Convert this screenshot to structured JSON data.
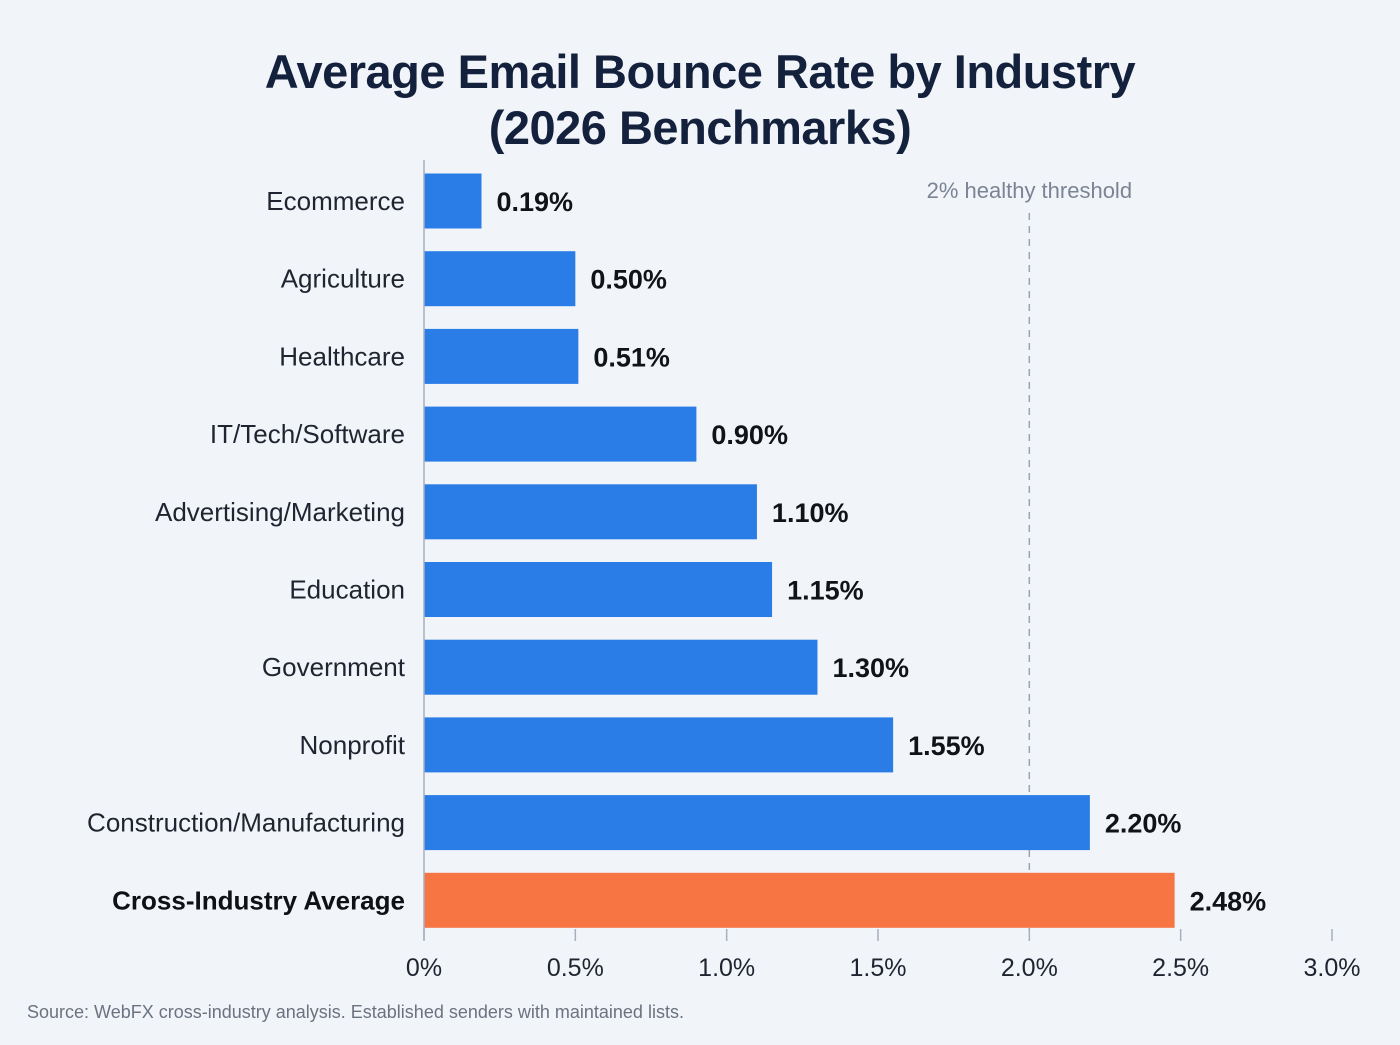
{
  "chart_data": {
    "type": "bar",
    "orientation": "horizontal",
    "title_line1": "Average Email Bounce Rate by Industry",
    "title_line2": "(2026 Benchmarks)",
    "categories": [
      "Ecommerce",
      "Agriculture",
      "Healthcare",
      "IT/Tech/Software",
      "Advertising/Marketing",
      "Education",
      "Government",
      "Nonprofit",
      "Construction/Manufacturing",
      "Cross-Industry Average"
    ],
    "values": [
      0.19,
      0.5,
      0.51,
      0.9,
      1.1,
      1.15,
      1.3,
      1.55,
      2.2,
      2.48
    ],
    "value_labels": [
      "0.19%",
      "0.50%",
      "0.51%",
      "0.90%",
      "1.10%",
      "1.15%",
      "1.30%",
      "1.55%",
      "2.20%",
      "2.48%"
    ],
    "highlight_index": 9,
    "xlim": [
      0,
      3.0
    ],
    "xticks": [
      0,
      0.5,
      1.0,
      1.5,
      2.0,
      2.5,
      3.0
    ],
    "xtick_labels": [
      "0%",
      "0.5%",
      "1.0%",
      "1.5%",
      "2.0%",
      "2.5%",
      "3.0%"
    ],
    "reference_line": {
      "value": 2.0,
      "label": "2% healthy threshold"
    },
    "colors": {
      "bar": "#2a7de6",
      "highlight": "#f77443",
      "threshold": "#9aa3b0"
    },
    "source": "Source: WebFX cross-industry analysis. Established senders with maintained lists."
  }
}
